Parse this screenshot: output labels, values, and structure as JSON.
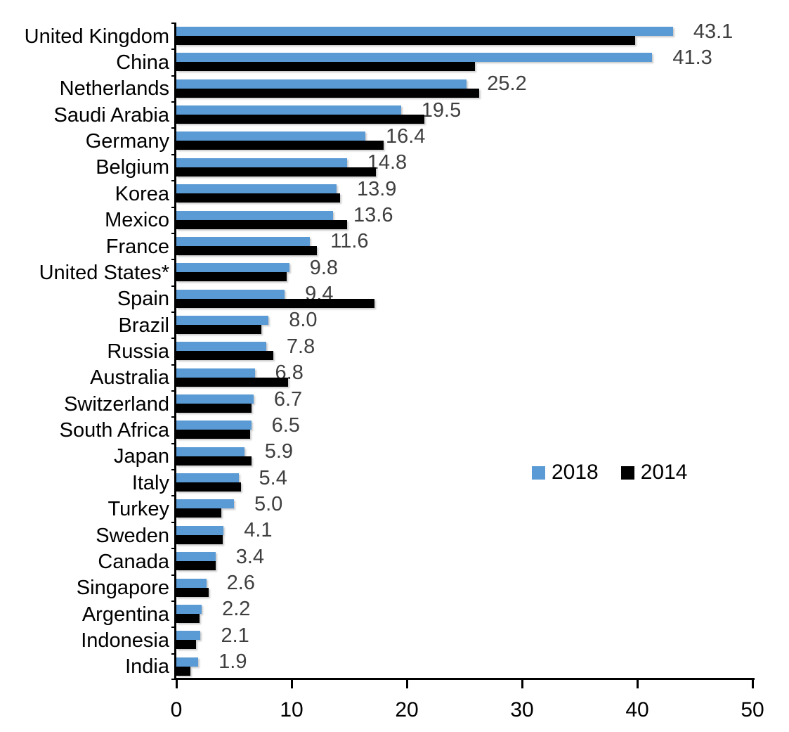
{
  "chart_data": {
    "type": "bar",
    "orientation": "horizontal",
    "title": "",
    "xlabel": "",
    "ylabel": "",
    "xlim": [
      0,
      50
    ],
    "x_ticks": [
      "0",
      "10",
      "20",
      "30",
      "40",
      "50"
    ],
    "grid": false,
    "legend_position": "middle-right",
    "categories": [
      "United Kingdom",
      "China",
      "Netherlands",
      "Saudi Arabia",
      "Germany",
      "Belgium",
      "Korea",
      "Mexico",
      "France",
      "United States*",
      "Spain",
      "Brazil",
      "Russia",
      "Australia",
      "Switzerland",
      "South Africa",
      "Japan",
      "Italy",
      "Turkey",
      "Sweden",
      "Canada",
      "Singapore",
      "Argentina",
      "Indonesia",
      "India"
    ],
    "series": [
      {
        "name": "2018",
        "color": "#5B9BD5",
        "values": [
          43.1,
          41.3,
          25.2,
          19.5,
          16.4,
          14.8,
          13.9,
          13.6,
          11.6,
          9.8,
          9.4,
          8.0,
          7.8,
          6.8,
          6.7,
          6.5,
          5.9,
          5.4,
          5.0,
          4.1,
          3.4,
          2.6,
          2.2,
          2.1,
          1.9
        ]
      },
      {
        "name": "2014",
        "color": "#000000",
        "values": [
          39.8,
          25.9,
          26.3,
          21.5,
          18.0,
          17.3,
          14.2,
          14.8,
          12.2,
          9.6,
          17.2,
          7.4,
          8.4,
          9.7,
          6.5,
          6.4,
          6.5,
          5.6,
          3.9,
          4.0,
          3.4,
          2.8,
          2.0,
          1.7,
          1.2
        ]
      }
    ],
    "data_labels": {
      "attached_to_series": "2018",
      "values": [
        "43.1",
        "41.3",
        "25.2",
        "19.5",
        "16.4",
        "14.8",
        "13.9",
        "13.6",
        "11.6",
        "9.8",
        "9.4",
        "8.0",
        "7.8",
        "6.8",
        "6.7",
        "6.5",
        "5.9",
        "5.4",
        "5.0",
        "4.1",
        "3.4",
        "2.6",
        "2.2",
        "2.1",
        "1.9"
      ]
    }
  },
  "legend": {
    "items": [
      {
        "label": "2018",
        "color": "#5B9BD5"
      },
      {
        "label": "2014",
        "color": "#000000"
      }
    ]
  },
  "colors": {
    "axis": "#000000",
    "value_label": "#3f3f3f",
    "background": "#ffffff"
  }
}
